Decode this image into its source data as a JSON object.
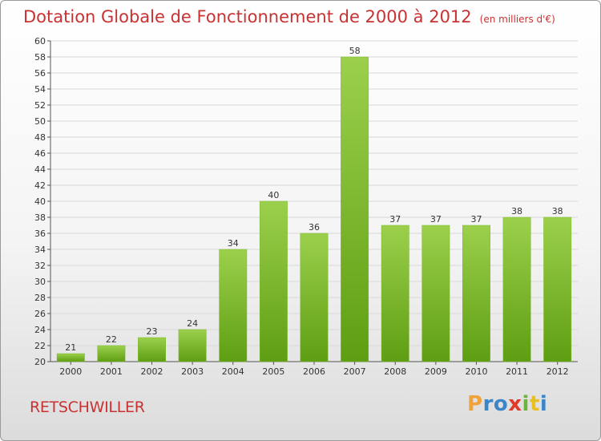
{
  "header": {
    "title": "Dotation Globale de Fonctionnement de 2000 à 2012",
    "subtitle": "(en milliers d'€)"
  },
  "footer": {
    "commune": "RETSCHWILLER",
    "logo_letters": [
      "P",
      "r",
      "o",
      "x",
      "i",
      "t",
      "i"
    ]
  },
  "colors": {
    "title": "#c83232",
    "bar_light": "#9cd04c",
    "bar_dark": "#5e9e12",
    "grid": "#d8d8d8",
    "logo": [
      "#f2a23a",
      "#3a86c8",
      "#3a86c8",
      "#e03a2a",
      "#6cb43a",
      "#e8c020",
      "#3a86c8"
    ]
  },
  "chart_data": {
    "type": "bar",
    "categories": [
      "2000",
      "2001",
      "2002",
      "2003",
      "2004",
      "2005",
      "2006",
      "2007",
      "2008",
      "2009",
      "2010",
      "2011",
      "2012"
    ],
    "values": [
      21,
      22,
      23,
      24,
      34,
      40,
      36,
      58,
      37,
      37,
      37,
      38,
      38
    ],
    "title": "Dotation Globale de Fonctionnement de 2000 à 2012",
    "subtitle": "(en milliers d'€)",
    "ylim": [
      20,
      60
    ],
    "ytick_step": 2,
    "grid": true,
    "legend": "none"
  }
}
